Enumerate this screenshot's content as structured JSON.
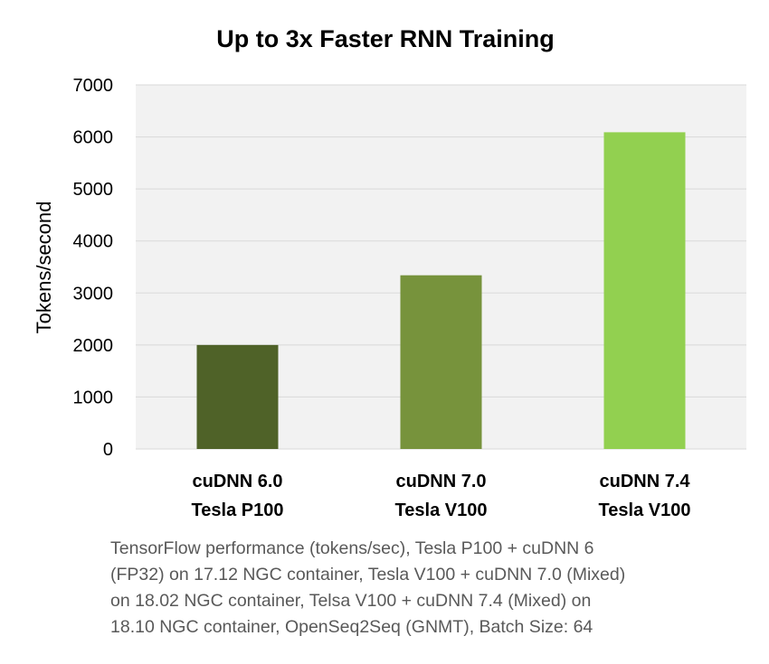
{
  "colors": {
    "plot_background": "#f2f2f2",
    "gridline": "#d9d9d9",
    "footnote_text": "#595959"
  },
  "chart_data": {
    "type": "bar",
    "title": "Up to 3x Faster RNN Training",
    "ylabel": "Tokens/second",
    "xlabel": "",
    "ylim": [
      0,
      7000
    ],
    "yticks": [
      0,
      1000,
      2000,
      3000,
      4000,
      5000,
      6000,
      7000
    ],
    "grid": true,
    "categories": [
      [
        "cuDNN 6.0",
        "Tesla P100"
      ],
      [
        "cuDNN 7.0",
        "Tesla V100"
      ],
      [
        "cuDNN 7.4",
        "Tesla V100"
      ]
    ],
    "values": [
      2000,
      3340,
      6090
    ],
    "bar_colors": [
      "#4f6228",
      "#77933c",
      "#92d050"
    ]
  },
  "footnote": {
    "lines": [
      "TensorFlow performance (tokens/sec), Tesla P100 + cuDNN 6",
      "(FP32) on 17.12 NGC container, Tesla V100 + cuDNN 7.0 (Mixed)",
      "on 18.02 NGC container, Telsa V100 + cuDNN 7.4 (Mixed) on",
      "18.10 NGC container, OpenSeq2Seq (GNMT), Batch Size: 64"
    ]
  }
}
